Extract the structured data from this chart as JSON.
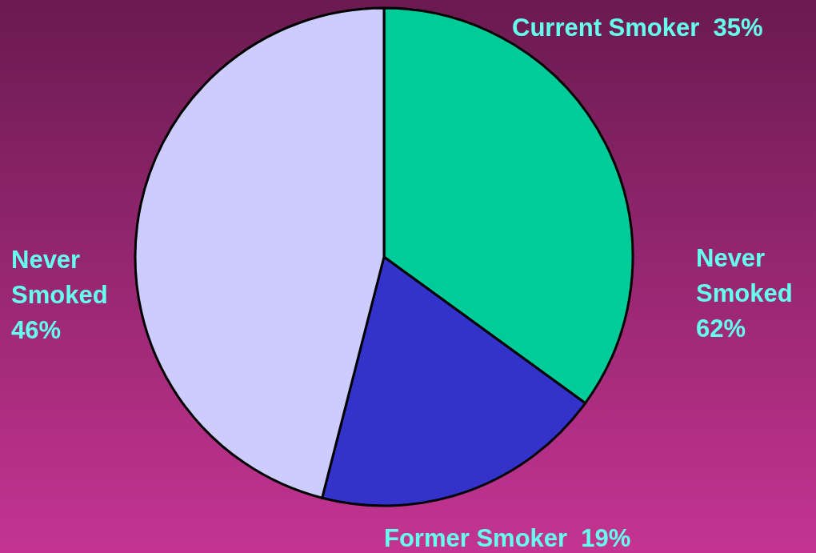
{
  "chart_data": {
    "type": "pie",
    "categories": [
      "Current Smoker",
      "Former Smoker",
      "Never Smoked"
    ],
    "values": [
      35,
      19,
      46
    ],
    "value_labels": [
      "35%",
      "19%",
      "46%"
    ],
    "colors": [
      "#00cc99",
      "#3333cc",
      "#ccccff"
    ],
    "annotations": [
      "Never Smoked 62%"
    ],
    "legend": false
  }
}
